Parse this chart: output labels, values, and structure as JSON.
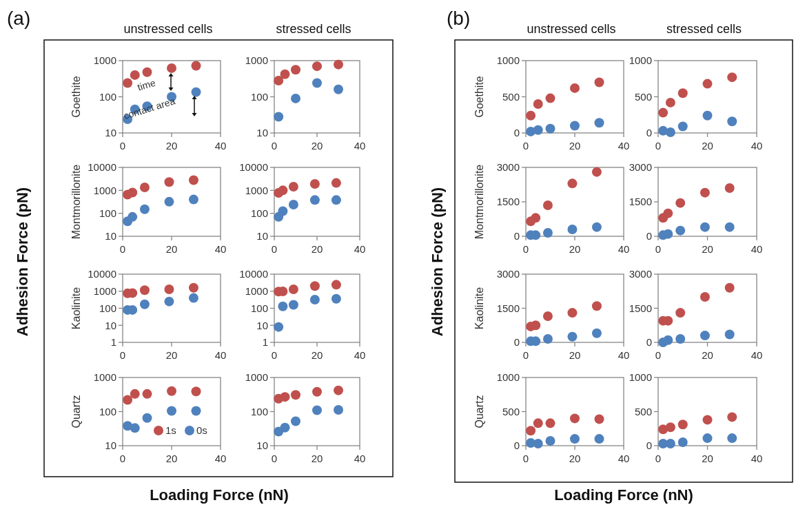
{
  "chart_data": [
    {
      "type": "scatter",
      "title": "unstressed cells",
      "ylabel": "Goethite",
      "xlim": [
        0,
        40
      ],
      "xticks": [
        0,
        20,
        40
      ],
      "ylim": [
        10,
        1000
      ],
      "yticks": [
        10,
        100,
        1000
      ],
      "log": "y",
      "marker": "circle",
      "annotations": [
        "(a)",
        "Adhesion Force (pN)",
        "Loading Force (nN)",
        "time",
        "contact area"
      ],
      "x": [
        2,
        5,
        10,
        20,
        30
      ],
      "series": [
        {
          "color": "#c0504d",
          "values": [
            240,
            400,
            480,
            620,
            720
          ]
        },
        {
          "color": "#4f81bd",
          "values": [
            24,
            45,
            55,
            100,
            135
          ]
        }
      ]
    },
    {
      "type": "scatter",
      "title": "stressed cells",
      "xlim": [
        0,
        40
      ],
      "xticks": [
        0,
        20,
        40
      ],
      "ylim": [
        10,
        1000
      ],
      "yticks": [
        10,
        100,
        1000
      ],
      "log": "y",
      "marker": "circle",
      "x": [
        2,
        5,
        10,
        20,
        30
      ],
      "series": [
        {
          "color": "#c0504d",
          "values": [
            280,
            420,
            560,
            700,
            780
          ]
        },
        {
          "color": "#4f81bd",
          "values": [
            28,
            null,
            90,
            240,
            160
          ]
        }
      ]
    },
    {
      "type": "scatter",
      "ylabel": "Montmorillonite",
      "xlim": [
        0,
        40
      ],
      "xticks": [
        0,
        20,
        40
      ],
      "ylim": [
        10,
        10000
      ],
      "yticks": [
        10,
        100,
        1000,
        10000
      ],
      "log": "y",
      "marker": "circle",
      "x": [
        2,
        4,
        9,
        19,
        29
      ],
      "series": [
        {
          "color": "#c0504d",
          "values": [
            650,
            800,
            1350,
            2300,
            2800
          ]
        },
        {
          "color": "#4f81bd",
          "values": [
            45,
            70,
            150,
            320,
            400
          ]
        }
      ]
    },
    {
      "type": "scatter",
      "xlim": [
        0,
        40
      ],
      "xticks": [
        0,
        20,
        40
      ],
      "ylim": [
        10,
        10000
      ],
      "yticks": [
        10,
        100,
        1000,
        10000
      ],
      "log": "y",
      "marker": "circle",
      "x": [
        2,
        4,
        9,
        19,
        29
      ],
      "series": [
        {
          "color": "#c0504d",
          "values": [
            780,
            1000,
            1450,
            1900,
            2100
          ]
        },
        {
          "color": "#4f81bd",
          "values": [
            70,
            125,
            240,
            380,
            380
          ]
        }
      ]
    },
    {
      "type": "scatter",
      "ylabel": "Kaolinite",
      "xlim": [
        0,
        40
      ],
      "xticks": [
        0,
        20,
        40
      ],
      "ylim": [
        1,
        10000
      ],
      "yticks": [
        1,
        10,
        100,
        1000,
        10000
      ],
      "log": "y",
      "marker": "circle",
      "x": [
        2,
        4,
        9,
        19,
        29
      ],
      "series": [
        {
          "color": "#c0504d",
          "values": [
            750,
            780,
            1150,
            1300,
            1600
          ]
        },
        {
          "color": "#4f81bd",
          "values": [
            80,
            80,
            170,
            250,
            400
          ]
        }
      ]
    },
    {
      "type": "scatter",
      "xlim": [
        0,
        40
      ],
      "xticks": [
        0,
        20,
        40
      ],
      "ylim": [
        1,
        10000
      ],
      "yticks": [
        1,
        10,
        100,
        1000,
        10000
      ],
      "log": "y",
      "marker": "circle",
      "x": [
        2,
        4,
        9,
        19,
        29
      ],
      "series": [
        {
          "color": "#c0504d",
          "values": [
            950,
            980,
            1300,
            2000,
            2400
          ]
        },
        {
          "color": "#4f81bd",
          "values": [
            8,
            130,
            160,
            320,
            360
          ]
        }
      ]
    },
    {
      "type": "scatter",
      "ylabel": "Quartz",
      "xlim": [
        0,
        40
      ],
      "xticks": [
        0,
        20,
        40
      ],
      "ylim": [
        10,
        1000
      ],
      "yticks": [
        10,
        100,
        1000
      ],
      "log": "y",
      "marker": "circle",
      "legend": "bottom right",
      "x": [
        2,
        5,
        10,
        20,
        30
      ],
      "series": [
        {
          "name": "1s",
          "color": "#c0504d",
          "values": [
            220,
            330,
            330,
            400,
            390
          ]
        },
        {
          "name": "0s",
          "color": "#4f81bd",
          "values": [
            38,
            33,
            65,
            105,
            105
          ]
        }
      ]
    },
    {
      "type": "scatter",
      "xlim": [
        0,
        40
      ],
      "xticks": [
        0,
        20,
        40
      ],
      "ylim": [
        10,
        1000
      ],
      "yticks": [
        10,
        100,
        1000
      ],
      "log": "y",
      "marker": "circle",
      "x": [
        2,
        5,
        10,
        20,
        30
      ],
      "series": [
        {
          "color": "#c0504d",
          "values": [
            240,
            270,
            310,
            380,
            420
          ]
        },
        {
          "color": "#4f81bd",
          "values": [
            26,
            34,
            52,
            110,
            112
          ]
        }
      ]
    },
    {
      "type": "scatter",
      "title": "unstressed cells",
      "ylabel": "Goethite",
      "xlim": [
        0,
        40
      ],
      "xticks": [
        0,
        20,
        40
      ],
      "ylim": [
        0,
        1000
      ],
      "yticks": [
        0,
        500,
        1000
      ],
      "marker": "circle",
      "annotations": [
        "(b)",
        "Adhesion Force (pN)",
        "Loading Force (nN)"
      ],
      "x": [
        2,
        5,
        10,
        20,
        30
      ],
      "series": [
        {
          "color": "#c0504d",
          "values": [
            240,
            400,
            480,
            620,
            700
          ]
        },
        {
          "color": "#4f81bd",
          "values": [
            20,
            40,
            60,
            100,
            140
          ]
        }
      ]
    },
    {
      "type": "scatter",
      "title": "stressed cells",
      "xlim": [
        0,
        40
      ],
      "xticks": [
        0,
        20,
        40
      ],
      "ylim": [
        0,
        1000
      ],
      "yticks": [
        0,
        500,
        1000
      ],
      "marker": "circle",
      "x": [
        2,
        5,
        10,
        20,
        30
      ],
      "series": [
        {
          "color": "#c0504d",
          "values": [
            280,
            420,
            550,
            680,
            770
          ]
        },
        {
          "color": "#4f81bd",
          "values": [
            30,
            10,
            90,
            240,
            160
          ]
        }
      ]
    },
    {
      "type": "scatter",
      "ylabel": "Montmorillonite",
      "xlim": [
        0,
        40
      ],
      "xticks": [
        0,
        20,
        40
      ],
      "ylim": [
        0,
        3000
      ],
      "yticks": [
        0,
        1500,
        3000
      ],
      "marker": "circle",
      "x": [
        2,
        4,
        9,
        19,
        29
      ],
      "series": [
        {
          "color": "#c0504d",
          "values": [
            650,
            800,
            1350,
            2300,
            2800
          ]
        },
        {
          "color": "#4f81bd",
          "values": [
            50,
            50,
            150,
            300,
            400
          ]
        }
      ]
    },
    {
      "type": "scatter",
      "xlim": [
        0,
        40
      ],
      "xticks": [
        0,
        20,
        40
      ],
      "ylim": [
        0,
        3000
      ],
      "yticks": [
        0,
        1500,
        3000
      ],
      "marker": "circle",
      "x": [
        2,
        4,
        9,
        19,
        29
      ],
      "series": [
        {
          "color": "#c0504d",
          "values": [
            800,
            1000,
            1450,
            1900,
            2100
          ]
        },
        {
          "color": "#4f81bd",
          "values": [
            50,
            100,
            250,
            400,
            400
          ]
        }
      ]
    },
    {
      "type": "scatter",
      "ylabel": "Kaolinite",
      "xlim": [
        0,
        40
      ],
      "xticks": [
        0,
        20,
        40
      ],
      "ylim": [
        0,
        3000
      ],
      "yticks": [
        0,
        1500,
        3000
      ],
      "marker": "circle",
      "x": [
        2,
        4,
        9,
        19,
        29
      ],
      "series": [
        {
          "color": "#c0504d",
          "values": [
            700,
            750,
            1150,
            1300,
            1600
          ]
        },
        {
          "color": "#4f81bd",
          "values": [
            50,
            50,
            150,
            250,
            400
          ]
        }
      ]
    },
    {
      "type": "scatter",
      "xlim": [
        0,
        40
      ],
      "xticks": [
        0,
        20,
        40
      ],
      "ylim": [
        0,
        3000
      ],
      "yticks": [
        0,
        1500,
        3000
      ],
      "marker": "circle",
      "x": [
        2,
        4,
        9,
        19,
        29
      ],
      "series": [
        {
          "color": "#c0504d",
          "values": [
            950,
            950,
            1300,
            2000,
            2400
          ]
        },
        {
          "color": "#4f81bd",
          "values": [
            0,
            100,
            150,
            300,
            350
          ]
        }
      ]
    },
    {
      "type": "scatter",
      "ylabel": "Quartz",
      "xlim": [
        0,
        40
      ],
      "xticks": [
        0,
        20,
        40
      ],
      "ylim": [
        0,
        1000
      ],
      "yticks": [
        0,
        500,
        1000
      ],
      "marker": "circle",
      "x": [
        2,
        5,
        10,
        20,
        30
      ],
      "series": [
        {
          "color": "#c0504d",
          "values": [
            220,
            330,
            330,
            400,
            390
          ]
        },
        {
          "color": "#4f81bd",
          "values": [
            40,
            30,
            70,
            100,
            100
          ]
        }
      ]
    },
    {
      "type": "scatter",
      "xlim": [
        0,
        40
      ],
      "xticks": [
        0,
        20,
        40
      ],
      "ylim": [
        0,
        1000
      ],
      "yticks": [
        0,
        500,
        1000
      ],
      "marker": "circle",
      "x": [
        2,
        5,
        10,
        20,
        30
      ],
      "series": [
        {
          "color": "#c0504d",
          "values": [
            240,
            270,
            310,
            380,
            420
          ]
        },
        {
          "color": "#4f81bd",
          "values": [
            30,
            30,
            50,
            110,
            110
          ]
        }
      ]
    }
  ]
}
